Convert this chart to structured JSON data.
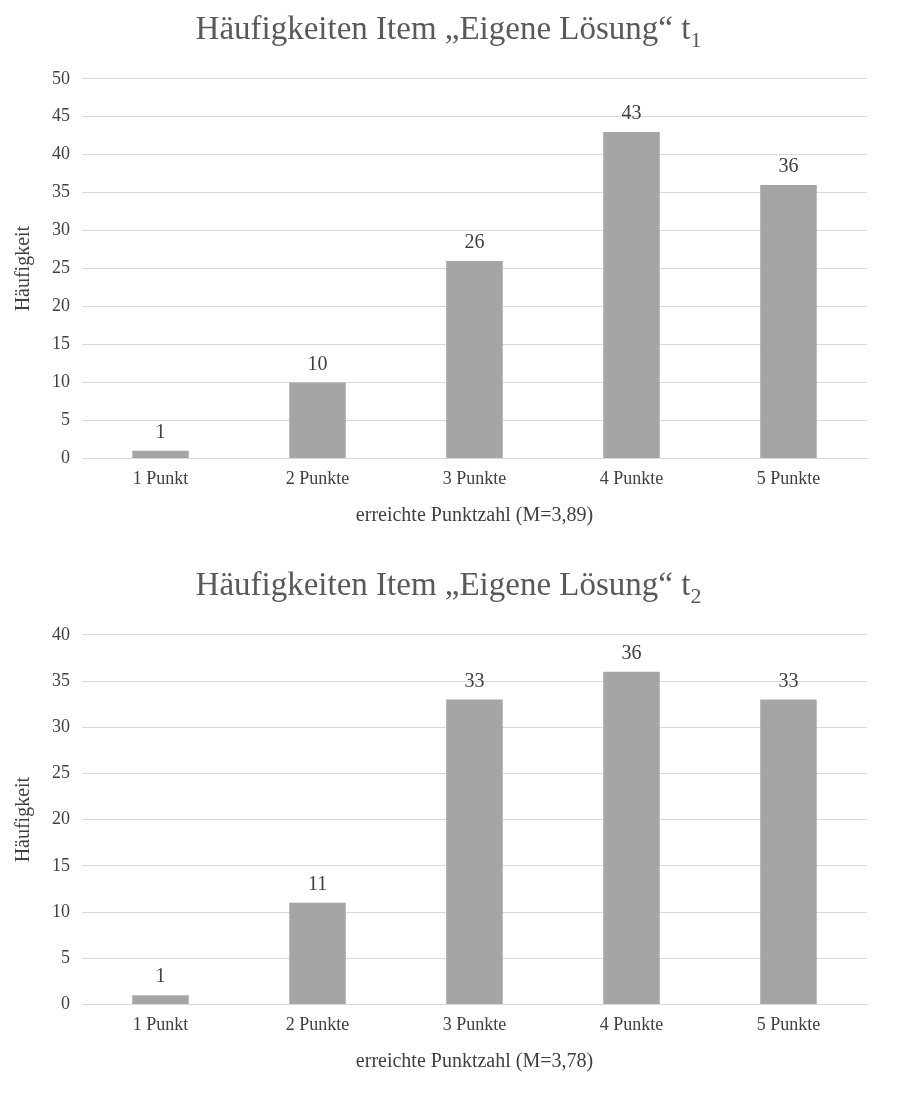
{
  "chart_data": [
    {
      "type": "bar",
      "title": "Häufigkeiten Item „Eigene Lösung“ t$_{1}$",
      "xlabel": "erreichte Punktzahl (M=3,89)",
      "ylabel": "Häufigkeit",
      "categories": [
        "1 Punkt",
        "2 Punkte",
        "3 Punkte",
        "4 Punkte",
        "5 Punkte"
      ],
      "values": [
        1,
        10,
        26,
        43,
        36
      ],
      "color": "#a5a5a5",
      "ylim": [
        0,
        50
      ],
      "yticks": [
        0,
        5,
        10,
        15,
        20,
        25,
        30,
        35,
        40,
        45,
        50
      ],
      "grid": "y",
      "data_labels": true,
      "legend": false
    },
    {
      "type": "bar",
      "title": "Häufigkeiten Item „Eigene Lösung“ t$_{2}$",
      "xlabel": "erreichte Punktzahl (M=3,78)",
      "ylabel": "Häufigkeit",
      "categories": [
        "1 Punkt",
        "2 Punkte",
        "3 Punkte",
        "4 Punkte",
        "5 Punkte"
      ],
      "values": [
        1,
        11,
        33,
        36,
        33
      ],
      "color": "#a5a5a5",
      "ylim": [
        0,
        40
      ],
      "yticks": [
        0,
        5,
        10,
        15,
        20,
        25,
        30,
        35,
        40
      ],
      "grid": "y",
      "data_labels": true,
      "legend": false
    }
  ]
}
